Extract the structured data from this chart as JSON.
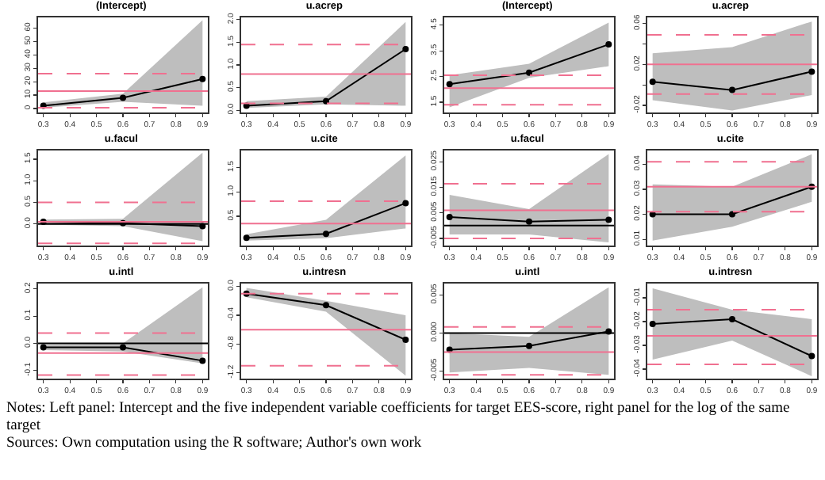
{
  "chart_data": [
    {
      "type": "line",
      "title": "(Intercept)",
      "x": [
        0.3,
        0.6,
        0.9
      ],
      "marker": "circle",
      "xlim": [
        0.28,
        0.92
      ],
      "xticks": [
        0.3,
        0.4,
        0.5,
        0.6,
        0.7,
        0.8,
        0.9
      ],
      "ylim": [
        -3,
        68
      ],
      "yticks": [
        0,
        10,
        20,
        30,
        40,
        50,
        60
      ],
      "series": [
        {
          "color": "#000000",
          "values": [
            2,
            8,
            22
          ],
          "lower": [
            0.5,
            5,
            2
          ],
          "upper": [
            4.5,
            11,
            66
          ]
        }
      ],
      "ref_lines": [
        {
          "axis": "y",
          "value": 13,
          "color": "#f07090",
          "line_style": "solid"
        },
        {
          "axis": "y",
          "value": 26,
          "color": "#f07090",
          "line_style": "dashed"
        },
        {
          "axis": "y",
          "value": 0.5,
          "color": "#f07090",
          "line_style": "dashed"
        }
      ]
    },
    {
      "type": "line",
      "title": "u.acrep",
      "x": [
        0.3,
        0.6,
        0.9
      ],
      "marker": "circle",
      "xlim": [
        0.28,
        0.92
      ],
      "xticks": [
        0.3,
        0.4,
        0.5,
        0.6,
        0.7,
        0.8,
        0.9
      ],
      "ylim": [
        -0.05,
        2.05
      ],
      "yticks": [
        {
          "value": 0,
          "label": "0.0"
        },
        0.5,
        {
          "value": 1,
          "label": "1.0"
        },
        1.5,
        {
          "value": 2,
          "label": "2.0"
        }
      ],
      "series": [
        {
          "color": "#000000",
          "values": [
            0.1,
            0.2,
            1.35
          ],
          "lower": [
            0.05,
            0.13,
            0.1
          ],
          "upper": [
            0.2,
            0.3,
            1.95
          ]
        }
      ],
      "ref_lines": [
        {
          "axis": "y",
          "value": 0.8,
          "color": "#f07090",
          "line_style": "solid"
        },
        {
          "axis": "y",
          "value": 1.45,
          "color": "#f07090",
          "line_style": "dashed"
        },
        {
          "axis": "y",
          "value": 0.15,
          "color": "#f07090",
          "line_style": "dashed"
        }
      ]
    },
    {
      "type": "line",
      "title": "u.facul",
      "x": [
        0.3,
        0.6,
        0.9
      ],
      "marker": "circle",
      "xlim": [
        0.28,
        0.92
      ],
      "xticks": [
        0.3,
        0.4,
        0.5,
        0.6,
        0.7,
        0.8,
        0.9
      ],
      "ylim": [
        -0.5,
        1.7
      ],
      "yticks": [
        {
          "value": 0,
          "label": "0.0"
        },
        0.5,
        {
          "value": 1,
          "label": "1.0"
        },
        1.5
      ],
      "series": [
        {
          "color": "#000000",
          "values": [
            0.05,
            0.02,
            -0.05
          ],
          "lower": [
            -0.02,
            -0.05,
            -0.4
          ],
          "upper": [
            0.1,
            0.12,
            1.65
          ]
        }
      ],
      "ref_lines": [
        {
          "axis": "y",
          "value": 0,
          "color": "#000000",
          "line_style": "solid"
        },
        {
          "axis": "y",
          "value": 0.05,
          "color": "#f07090",
          "line_style": "solid"
        },
        {
          "axis": "y",
          "value": 0.5,
          "color": "#f07090",
          "line_style": "dashed"
        },
        {
          "axis": "y",
          "value": -0.45,
          "color": "#f07090",
          "line_style": "dashed"
        }
      ]
    },
    {
      "type": "line",
      "title": "u.cite",
      "x": [
        0.3,
        0.6,
        0.9
      ],
      "marker": "circle",
      "xlim": [
        0.28,
        0.92
      ],
      "xticks": [
        0.3,
        0.4,
        0.5,
        0.6,
        0.7,
        0.8,
        0.9
      ],
      "ylim": [
        -0.1,
        1.85
      ],
      "yticks": [
        0.5,
        {
          "value": 1,
          "label": "1.0"
        },
        1.5
      ],
      "series": [
        {
          "color": "#000000",
          "values": [
            0.06,
            0.14,
            0.77
          ],
          "lower": [
            0,
            0.05,
            0.25
          ],
          "upper": [
            0.13,
            0.43,
            1.75
          ]
        }
      ],
      "ref_lines": [
        {
          "axis": "y",
          "value": 0.35,
          "color": "#f07090",
          "line_style": "solid"
        },
        {
          "axis": "y",
          "value": 0.81,
          "color": "#f07090",
          "line_style": "dashed"
        }
      ]
    },
    {
      "type": "line",
      "title": "u.intl",
      "x": [
        0.3,
        0.6,
        0.9
      ],
      "marker": "circle",
      "xlim": [
        0.28,
        0.92
      ],
      "xticks": [
        0.3,
        0.4,
        0.5,
        0.6,
        0.7,
        0.8,
        0.9
      ],
      "ylim": [
        -0.13,
        0.22
      ],
      "yticks": [
        -0.1,
        {
          "value": 0,
          "label": "0.0"
        },
        0.1,
        0.2
      ],
      "series": [
        {
          "color": "#000000",
          "values": [
            -0.015,
            -0.015,
            -0.064
          ],
          "lower": [
            -0.025,
            -0.03,
            -0.074
          ],
          "upper": [
            -0.005,
            0,
            0.206
          ]
        }
      ],
      "ref_lines": [
        {
          "axis": "y",
          "value": 0,
          "color": "#000000",
          "line_style": "solid"
        },
        {
          "axis": "y",
          "value": -0.036,
          "color": "#f07090",
          "line_style": "solid"
        },
        {
          "axis": "y",
          "value": 0.038,
          "color": "#f07090",
          "line_style": "dashed"
        },
        {
          "axis": "y",
          "value": -0.117,
          "color": "#f07090",
          "line_style": "dashed"
        }
      ]
    },
    {
      "type": "line",
      "title": "u.intresn",
      "x": [
        0.3,
        0.6,
        0.9
      ],
      "marker": "circle",
      "xlim": [
        0.28,
        0.92
      ],
      "xticks": [
        0.3,
        0.4,
        0.5,
        0.6,
        0.7,
        0.8,
        0.9
      ],
      "ylim": [
        -1.28,
        0.04
      ],
      "yticks": [
        -1.2,
        -0.8,
        -0.4,
        {
          "value": 0,
          "label": "0.0"
        }
      ],
      "series": [
        {
          "color": "#000000",
          "values": [
            -0.1,
            -0.26,
            -0.74
          ],
          "lower": [
            -0.15,
            -0.35,
            -1.24
          ],
          "upper": [
            -0.02,
            -0.2,
            -0.4
          ]
        }
      ],
      "ref_lines": [
        {
          "axis": "y",
          "value": -0.6,
          "color": "#f07090",
          "line_style": "solid"
        },
        {
          "axis": "y",
          "value": -0.1,
          "color": "#f07090",
          "line_style": "dashed"
        },
        {
          "axis": "y",
          "value": -1.1,
          "color": "#f07090",
          "line_style": "dashed"
        }
      ]
    },
    {
      "type": "line",
      "title": "(Intercept)",
      "x": [
        0.3,
        0.6,
        0.9
      ],
      "marker": "circle",
      "xlim": [
        0.28,
        0.92
      ],
      "xticks": [
        0.3,
        0.4,
        0.5,
        0.6,
        0.7,
        0.8,
        0.9
      ],
      "ylim": [
        1.1,
        4.8
      ],
      "yticks": [
        1.5,
        2.5,
        3.5,
        4.5
      ],
      "series": [
        {
          "color": "#000000",
          "values": [
            2.2,
            2.65,
            3.75
          ],
          "lower": [
            1.3,
            2.45,
            2.9
          ],
          "upper": [
            2.55,
            3,
            4.6
          ]
        }
      ],
      "ref_lines": [
        {
          "axis": "y",
          "value": 2.05,
          "color": "#f07090",
          "line_style": "solid"
        },
        {
          "axis": "y",
          "value": 2.55,
          "color": "#f07090",
          "line_style": "dashed"
        },
        {
          "axis": "y",
          "value": 1.4,
          "color": "#f07090",
          "line_style": "dashed"
        }
      ]
    },
    {
      "type": "line",
      "title": "u.acrep",
      "x": [
        0.3,
        0.6,
        0.9
      ],
      "marker": "circle",
      "xlim": [
        0.28,
        0.92
      ],
      "xticks": [
        0.3,
        0.4,
        0.5,
        0.6,
        0.7,
        0.8,
        0.9
      ],
      "ylim": [
        -0.027,
        0.066
      ],
      "yticks": [
        -0.02,
        {
          "value": 0,
          "label": null
        },
        0.02,
        {
          "value": 0.04,
          "label": null
        },
        0.06
      ],
      "series": [
        {
          "color": "#000000",
          "values": [
            0.003,
            -0.005,
            0.013
          ],
          "lower": [
            -0.015,
            -0.025,
            -0.01
          ],
          "upper": [
            0.031,
            0.037,
            0.062
          ]
        }
      ],
      "ref_lines": [
        {
          "axis": "y",
          "value": 0.02,
          "color": "#f07090",
          "line_style": "solid"
        },
        {
          "axis": "y",
          "value": 0.049,
          "color": "#f07090",
          "line_style": "dashed"
        },
        {
          "axis": "y",
          "value": -0.009,
          "color": "#f07090",
          "line_style": "dashed"
        }
      ]
    },
    {
      "type": "line",
      "title": "u.facul",
      "x": [
        0.3,
        0.6,
        0.9
      ],
      "marker": "circle",
      "xlim": [
        0.28,
        0.92
      ],
      "xticks": [
        0.3,
        0.4,
        0.5,
        0.6,
        0.7,
        0.8,
        0.9
      ],
      "ylim": [
        -0.0078,
        0.0294
      ],
      "yticks": [
        -0.005,
        0.005,
        0.015,
        0.025
      ],
      "series": [
        {
          "color": "#000000",
          "values": [
            0.0034,
            0.0016,
            0.0023
          ],
          "lower": [
            -0.0035,
            -0.0035,
            -0.0066
          ],
          "upper": [
            0.012,
            0.0065,
            0.028
          ]
        }
      ],
      "ref_lines": [
        {
          "axis": "y",
          "value": 0,
          "color": "#000000",
          "line_style": "solid"
        },
        {
          "axis": "y",
          "value": 0.006,
          "color": "#f07090",
          "line_style": "solid"
        },
        {
          "axis": "y",
          "value": 0.0164,
          "color": "#f07090",
          "line_style": "dashed"
        },
        {
          "axis": "y",
          "value": -0.005,
          "color": "#f07090",
          "line_style": "dashed"
        }
      ]
    },
    {
      "type": "line",
      "title": "u.cite",
      "x": [
        0.3,
        0.6,
        0.9
      ],
      "marker": "circle",
      "xlim": [
        0.28,
        0.92
      ],
      "xticks": [
        0.3,
        0.4,
        0.5,
        0.6,
        0.7,
        0.8,
        0.9
      ],
      "ylim": [
        0.0075,
        0.0455
      ],
      "yticks": [
        0.01,
        0.02,
        0.03,
        0.04
      ],
      "series": [
        {
          "color": "#000000",
          "values": [
            0.02,
            0.02,
            0.031
          ],
          "lower": [
            0.0095,
            0.015,
            0.025
          ],
          "upper": [
            0.032,
            0.031,
            0.044
          ]
        }
      ],
      "ref_lines": [
        {
          "axis": "y",
          "value": 0.031,
          "color": "#f07090",
          "line_style": "solid"
        },
        {
          "axis": "y",
          "value": 0.041,
          "color": "#f07090",
          "line_style": "dashed"
        },
        {
          "axis": "y",
          "value": 0.021,
          "color": "#f07090",
          "line_style": "dashed"
        }
      ]
    },
    {
      "type": "line",
      "title": "u.intl",
      "x": [
        0.3,
        0.6,
        0.9
      ],
      "marker": "circle",
      "xlim": [
        0.28,
        0.92
      ],
      "xticks": [
        0.3,
        0.4,
        0.5,
        0.6,
        0.7,
        0.8,
        0.9
      ],
      "ylim": [
        -0.006,
        0.0065
      ],
      "yticks": [
        -0.005,
        {
          "value": 0,
          "label": "0.000"
        },
        0.005
      ],
      "series": [
        {
          "color": "#000000",
          "values": [
            -0.0022,
            -0.0017,
            0.0002
          ],
          "lower": [
            -0.0052,
            -0.0046,
            -0.0055
          ],
          "upper": [
            0,
            -0.0005,
            0.006
          ]
        }
      ],
      "ref_lines": [
        {
          "axis": "y",
          "value": 0,
          "color": "#000000",
          "line_style": "solid"
        },
        {
          "axis": "y",
          "value": -0.0025,
          "color": "#f07090",
          "line_style": "solid"
        },
        {
          "axis": "y",
          "value": 0.0008,
          "color": "#f07090",
          "line_style": "dashed"
        },
        {
          "axis": "y",
          "value": -0.0055,
          "color": "#f07090",
          "line_style": "dashed"
        }
      ]
    },
    {
      "type": "line",
      "title": "u.intresn",
      "x": [
        0.3,
        0.6,
        0.9
      ],
      "marker": "circle",
      "xlim": [
        0.28,
        0.92
      ],
      "xticks": [
        0.3,
        0.4,
        0.5,
        0.6,
        0.7,
        0.8,
        0.9
      ],
      "ylim": [
        -0.044,
        -0.004
      ],
      "yticks": [
        -0.04,
        -0.03,
        -0.02,
        -0.01
      ],
      "series": [
        {
          "color": "#000000",
          "values": [
            -0.021,
            -0.019,
            -0.0345
          ],
          "lower": [
            -0.036,
            -0.028,
            -0.043
          ],
          "upper": [
            -0.006,
            -0.015,
            -0.019
          ]
        }
      ],
      "ref_lines": [
        {
          "axis": "y",
          "value": -0.026,
          "color": "#f07090",
          "line_style": "solid"
        },
        {
          "axis": "y",
          "value": -0.015,
          "color": "#f07090",
          "line_style": "dashed"
        },
        {
          "axis": "y",
          "value": -0.038,
          "color": "#f07090",
          "line_style": "dashed"
        }
      ],
      "annotations": [
        "Notes: Left panel: Intercept and the five independent variable coefficients for target EES-score, right panel for the log of the same target",
        "Sources: Own computation using the R software; Author's own work"
      ]
    }
  ]
}
